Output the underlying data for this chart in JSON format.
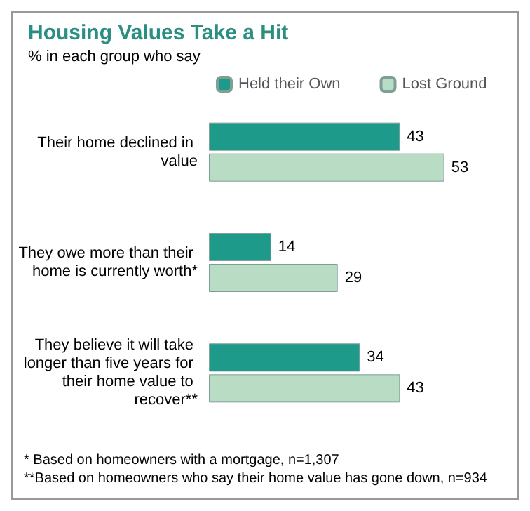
{
  "chart_data": {
    "type": "bar",
    "orientation": "horizontal",
    "title": "Housing Values Take a Hit",
    "subtitle": "% in each group who say",
    "categories": [
      "Their home declined in value",
      "They owe more than their home is currently worth*",
      "They believe it will take longer than five years for their home value to recover**"
    ],
    "series": [
      {
        "name": "Held their Own",
        "color": "#1e9a8a",
        "values": [
          43,
          14,
          34
        ]
      },
      {
        "name": "Lost Ground",
        "color": "#b9dcc4",
        "values": [
          53,
          29,
          43
        ]
      }
    ],
    "data_labels": true,
    "legend": "top",
    "annotations": [
      "* Based on homeowners with a mortgage, n=1,307",
      "**Based on homeowners who say their home value has gone down, n=934"
    ]
  }
}
